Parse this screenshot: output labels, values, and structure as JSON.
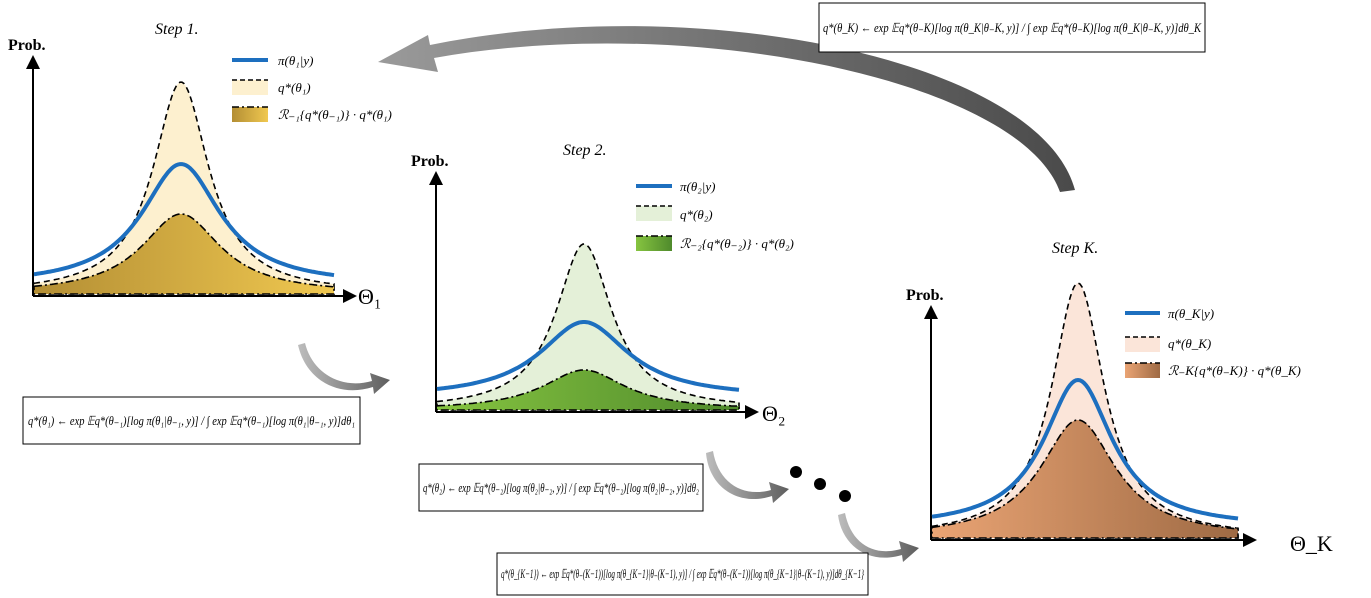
{
  "panels": [
    {
      "id": "step1",
      "title": "Step 1.",
      "y_label": "Prob.",
      "x_label": "Θ₁",
      "fill_colors": {
        "q_fill": "#fdf0cf",
        "r_fill_light": "#f0c850",
        "r_fill_dark": "#b38e34"
      },
      "legend": [
        {
          "kind": "line",
          "label": "π(θ₁|y)"
        },
        {
          "kind": "dashed",
          "label": "q*(θ₁)"
        },
        {
          "kind": "dashdot",
          "label": "ℛ₋₁{q*(θ₋₁)} · q*(θ₁)"
        }
      ],
      "formula": "q*(θ₁) ← exp 𝔼q*(θ₋₁)[log π(θ₁|θ₋₁, y)] / ∫ exp 𝔼q*(θ₋₁)[log π(θ₁|θ₋₁, y)]dθ₁"
    },
    {
      "id": "step2",
      "title": "Step 2.",
      "y_label": "Prob.",
      "x_label": "Θ₂",
      "fill_colors": {
        "q_fill": "#e4f0d8",
        "r_fill_light": "#86c440",
        "r_fill_dark": "#4f8a2c"
      },
      "legend": [
        {
          "kind": "line",
          "label": "π(θ₂|y)"
        },
        {
          "kind": "dashed",
          "label": "q*(θ₂)"
        },
        {
          "kind": "dashdot",
          "label": "ℛ₋₂{q*(θ₋₂)} · q*(θ₂)"
        }
      ],
      "formula": "q*(θ₂) ← exp 𝔼q*(θ₋₂)[log π(θ₂|θ₋₂, y)] / ∫ exp 𝔼q*(θ₋₂)[log π(θ₂|θ₋₂, y)]dθ₂"
    },
    {
      "id": "stepK",
      "title": "Step K.",
      "y_label": "Prob.",
      "x_label": "Θ_K",
      "fill_colors": {
        "q_fill": "#fbe5d9",
        "r_fill_light": "#eaa474",
        "r_fill_dark": "#9e6a44"
      },
      "legend": [
        {
          "kind": "line",
          "label": "π(θ_K|y)"
        },
        {
          "kind": "dashed",
          "label": "q*(θ_K)"
        },
        {
          "kind": "dashdot",
          "label": "ℛ₋K{q*(θ₋K)} · q*(θ_K)"
        }
      ],
      "formula": "q*(θ_K) ← exp 𝔼q*(θ₋K)[log π(θ_K|θ₋K, y)] / ∫ exp 𝔼q*(θ₋K)[log π(θ_K|θ₋K, y)]dθ_K"
    }
  ],
  "extra_formula": {
    "formula": "q*(θ_{K−1}) ← exp 𝔼q*(θ₋(K−1))[log π(θ_{K−1}|θ₋(K−1), y)] / ∫ exp 𝔼q*(θ₋(K−1))[log π(θ_{K−1}|θ₋(K−1), y)]dθ_{K−1}"
  },
  "colors": {
    "pi_line": "#1d6fbf",
    "arrow": "#707070"
  }
}
